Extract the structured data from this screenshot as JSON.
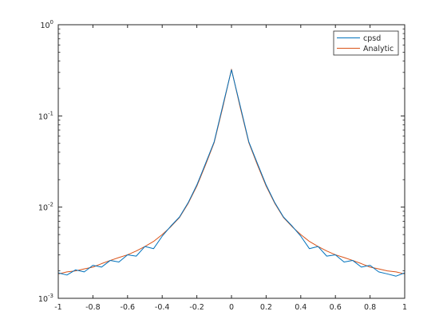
{
  "chart_data": {
    "type": "line",
    "title": "",
    "xlabel": "",
    "ylabel": "",
    "xlim": [
      -1,
      1
    ],
    "ylim": [
      0.001,
      1
    ],
    "yscale": "log",
    "grid": false,
    "legend_position": "top-right",
    "x_ticks": [
      -1,
      -0.8,
      -0.6,
      -0.4,
      -0.2,
      0,
      0.2,
      0.4,
      0.6,
      0.8,
      1
    ],
    "x_tick_labels": [
      "-1",
      "-0.8",
      "-0.6",
      "-0.4",
      "-0.2",
      "0",
      "0.2",
      "0.4",
      "0.6",
      "0.8",
      "1"
    ],
    "y_ticks": [
      {
        "value": 0.001,
        "base": "10",
        "exp": "-3"
      },
      {
        "value": 0.01,
        "base": "10",
        "exp": "-2"
      },
      {
        "value": 0.1,
        "base": "10",
        "exp": "-1"
      },
      {
        "value": 1,
        "base": "10",
        "exp": "0"
      }
    ],
    "series": [
      {
        "name": "cpsd",
        "color": "#0072BD",
        "x": [
          -1,
          -0.95,
          -0.9,
          -0.85,
          -0.8,
          -0.75,
          -0.7,
          -0.65,
          -0.6,
          -0.55,
          -0.5,
          -0.45,
          -0.4,
          -0.35,
          -0.3,
          -0.25,
          -0.2,
          -0.15,
          -0.1,
          -0.05,
          0,
          0.05,
          0.1,
          0.15,
          0.2,
          0.25,
          0.3,
          0.35,
          0.4,
          0.45,
          0.5,
          0.55,
          0.6,
          0.65,
          0.7,
          0.75,
          0.8,
          0.85,
          0.9,
          0.95,
          1
        ],
        "y": [
          0.0019,
          0.0018,
          0.00205,
          0.00195,
          0.0023,
          0.0022,
          0.0026,
          0.0025,
          0.003,
          0.0029,
          0.0037,
          0.0035,
          0.0048,
          0.0062,
          0.0078,
          0.0112,
          0.0175,
          0.03,
          0.052,
          0.13,
          0.32,
          0.13,
          0.052,
          0.03,
          0.0175,
          0.0112,
          0.0078,
          0.0062,
          0.0048,
          0.0035,
          0.0037,
          0.0029,
          0.003,
          0.0025,
          0.0026,
          0.0022,
          0.0023,
          0.00195,
          0.00185,
          0.00175,
          0.0019
        ]
      },
      {
        "name": "Analytic",
        "color": "#D95319",
        "x": [
          -1,
          -0.95,
          -0.9,
          -0.85,
          -0.8,
          -0.75,
          -0.7,
          -0.65,
          -0.6,
          -0.55,
          -0.5,
          -0.45,
          -0.4,
          -0.35,
          -0.3,
          -0.25,
          -0.2,
          -0.15,
          -0.1,
          -0.05,
          0,
          0.05,
          0.1,
          0.15,
          0.2,
          0.25,
          0.3,
          0.35,
          0.4,
          0.45,
          0.5,
          0.55,
          0.6,
          0.65,
          0.7,
          0.75,
          0.8,
          0.85,
          0.9,
          0.95,
          1
        ],
        "y": [
          0.00185,
          0.00195,
          0.002,
          0.0021,
          0.0022,
          0.0024,
          0.0026,
          0.0028,
          0.003,
          0.0033,
          0.0037,
          0.0042,
          0.005,
          0.0061,
          0.0077,
          0.011,
          0.017,
          0.029,
          0.051,
          0.125,
          0.325,
          0.125,
          0.051,
          0.029,
          0.017,
          0.011,
          0.0077,
          0.0061,
          0.005,
          0.0042,
          0.0037,
          0.0033,
          0.003,
          0.0028,
          0.0026,
          0.0024,
          0.0022,
          0.0021,
          0.002,
          0.00195,
          0.00185
        ]
      }
    ]
  }
}
